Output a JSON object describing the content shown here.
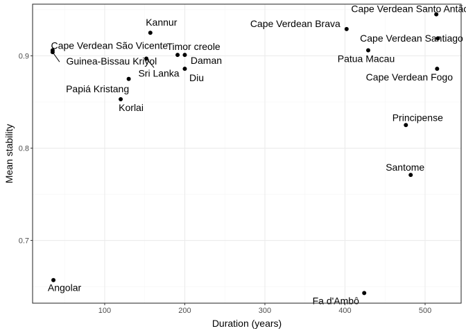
{
  "chart_data": {
    "type": "scatter",
    "xlabel": "Duration (years)",
    "ylabel": "Mean stability",
    "xlim": [
      10,
      545
    ],
    "ylim": [
      0.632,
      0.956
    ],
    "xticks": [
      100,
      200,
      300,
      400,
      500
    ],
    "yticks": [
      0.7,
      0.8,
      0.9
    ],
    "ytick_labels": [
      "0.7",
      "0.8",
      "0.9"
    ],
    "grid": true,
    "colors": {
      "point": "#000000",
      "panel_border": "#333333",
      "grid_major": "#ebebeb",
      "grid_minor": "#f5f5f5",
      "background": "#ffffff"
    },
    "points": [
      {
        "label": "Angolar",
        "x": 36,
        "y": 0.657
      },
      {
        "label": "Cape Verdean São Vicente",
        "x": 35,
        "y": 0.906
      },
      {
        "label": "Guinea-Bissau Kriyol",
        "x": 35,
        "y": 0.904
      },
      {
        "label": "Kannur",
        "x": 157,
        "y": 0.925
      },
      {
        "label": "Sri Lanka",
        "x": 152,
        "y": 0.897
      },
      {
        "label": "Papiá Kristang",
        "x": 130,
        "y": 0.875
      },
      {
        "label": "Korlai",
        "x": 120,
        "y": 0.853
      },
      {
        "label": "Timor creole",
        "x": 191,
        "y": 0.901
      },
      {
        "label": "Daman",
        "x": 200,
        "y": 0.901
      },
      {
        "label": "Diu",
        "x": 200,
        "y": 0.886
      },
      {
        "label": "Cape Verdean Brava",
        "x": 402,
        "y": 0.929
      },
      {
        "label": "Cape Verdean Santo Antão",
        "x": 514,
        "y": 0.945
      },
      {
        "label": "Cape Verdean Santiago",
        "x": 516,
        "y": 0.919
      },
      {
        "label": "Patua Macau",
        "x": 429,
        "y": 0.906
      },
      {
        "label": "Cape Verdean Fogo",
        "x": 515,
        "y": 0.886
      },
      {
        "label": "Principense",
        "x": 476,
        "y": 0.825
      },
      {
        "label": "Santome",
        "x": 482,
        "y": 0.771
      },
      {
        "label": "Fa d'Ambô",
        "x": 424,
        "y": 0.643
      }
    ]
  }
}
